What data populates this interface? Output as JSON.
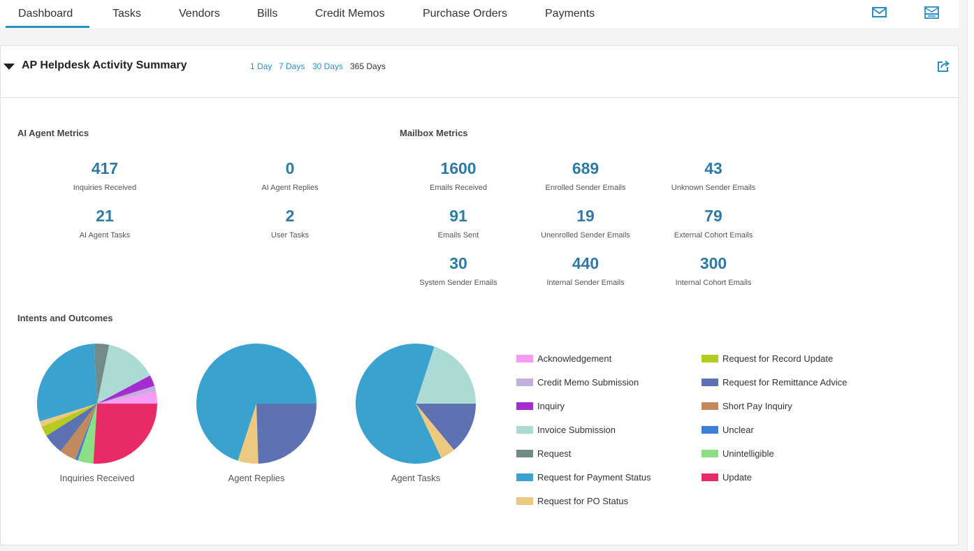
{
  "nav": {
    "tabs": [
      "Dashboard",
      "Tasks",
      "Vendors",
      "Bills",
      "Credit Memos",
      "Purchase Orders",
      "Payments"
    ],
    "active_tab": "Dashboard",
    "icons": [
      "mail-icon",
      "mailbox-settings-icon"
    ]
  },
  "panel": {
    "title": "AP Helpdesk Activity Summary",
    "ranges": [
      "1 Day",
      "7 Days",
      "30 Days",
      "365 Days"
    ],
    "selected_range": "365 Days"
  },
  "ai_agent_metrics": {
    "title": "AI Agent Metrics",
    "items": [
      {
        "value": "417",
        "label": "Inquiries Received"
      },
      {
        "value": "0",
        "label": "AI Agent Replies"
      },
      {
        "value": "21",
        "label": "AI Agent Tasks"
      },
      {
        "value": "2",
        "label": "User Tasks"
      }
    ]
  },
  "mailbox_metrics": {
    "title": "Mailbox Metrics",
    "items": [
      {
        "value": "1600",
        "label": "Emails Received"
      },
      {
        "value": "689",
        "label": "Enrolled Sender Emails"
      },
      {
        "value": "43",
        "label": "Unknown Sender Emails"
      },
      {
        "value": "91",
        "label": "Emails Sent"
      },
      {
        "value": "19",
        "label": "Unenrolled Sender Emails"
      },
      {
        "value": "79",
        "label": "External Cohort Emails"
      },
      {
        "value": "30",
        "label": "System Sender Emails"
      },
      {
        "value": "440",
        "label": "Internal Sender Emails"
      },
      {
        "value": "300",
        "label": "Internal Cohort Emails"
      }
    ]
  },
  "intents": {
    "title": "Intents and Outcomes",
    "legend": [
      {
        "name": "Acknowledgement",
        "color": "#f79cf5"
      },
      {
        "name": "Credit Memo Submission",
        "color": "#c3aedc"
      },
      {
        "name": "Inquiry",
        "color": "#a52dcf"
      },
      {
        "name": "Invoice Submission",
        "color": "#acdbd6"
      },
      {
        "name": "Request",
        "color": "#718c88"
      },
      {
        "name": "Request for Payment Status",
        "color": "#39a2cf"
      },
      {
        "name": "Request for PO Status",
        "color": "#edc87f"
      },
      {
        "name": "Request for Record Update",
        "color": "#b5cc1e"
      },
      {
        "name": "Request for Remittance Advice",
        "color": "#5e72b3"
      },
      {
        "name": "Short Pay Inquiry",
        "color": "#c08a5c"
      },
      {
        "name": "Unclear",
        "color": "#3d7fd3"
      },
      {
        "name": "Unintelligible",
        "color": "#8ddf87"
      },
      {
        "name": "Update",
        "color": "#e82a65"
      }
    ]
  },
  "chart_data": [
    {
      "type": "pie",
      "title": "Inquiries Received",
      "slices": [
        {
          "label": "Acknowledgement",
          "value": 3.3
        },
        {
          "label": "Credit Memo Submission",
          "value": 1.5
        },
        {
          "label": "Inquiry",
          "value": 3.0
        },
        {
          "label": "Invoice Submission",
          "value": 14.0
        },
        {
          "label": "Request",
          "value": 4.0
        },
        {
          "label": "Request for Payment Status",
          "value": 29.0
        },
        {
          "label": "Request for PO Status",
          "value": 1.5
        },
        {
          "label": "Request for Record Update",
          "value": 2.7
        },
        {
          "label": "Request for Remittance Advice",
          "value": 5.6
        },
        {
          "label": "Short Pay Inquiry",
          "value": 4.5
        },
        {
          "label": "Unclear",
          "value": 0.7
        },
        {
          "label": "Unintelligible",
          "value": 4.2
        },
        {
          "label": "Update",
          "value": 26.0
        }
      ]
    },
    {
      "type": "pie",
      "title": "Agent Replies",
      "slices": [
        {
          "label": "Request for Payment Status",
          "value": 70.0
        },
        {
          "label": "Request for PO Status",
          "value": 5.5
        },
        {
          "label": "Request for Remittance Advice",
          "value": 24.5
        }
      ]
    },
    {
      "type": "pie",
      "title": "Agent Tasks",
      "slices": [
        {
          "label": "Invoice Submission",
          "value": 20.0
        },
        {
          "label": "Request for Payment Status",
          "value": 62.0
        },
        {
          "label": "Request for PO Status",
          "value": 4.0
        },
        {
          "label": "Request for Remittance Advice",
          "value": 14.0
        }
      ]
    }
  ]
}
